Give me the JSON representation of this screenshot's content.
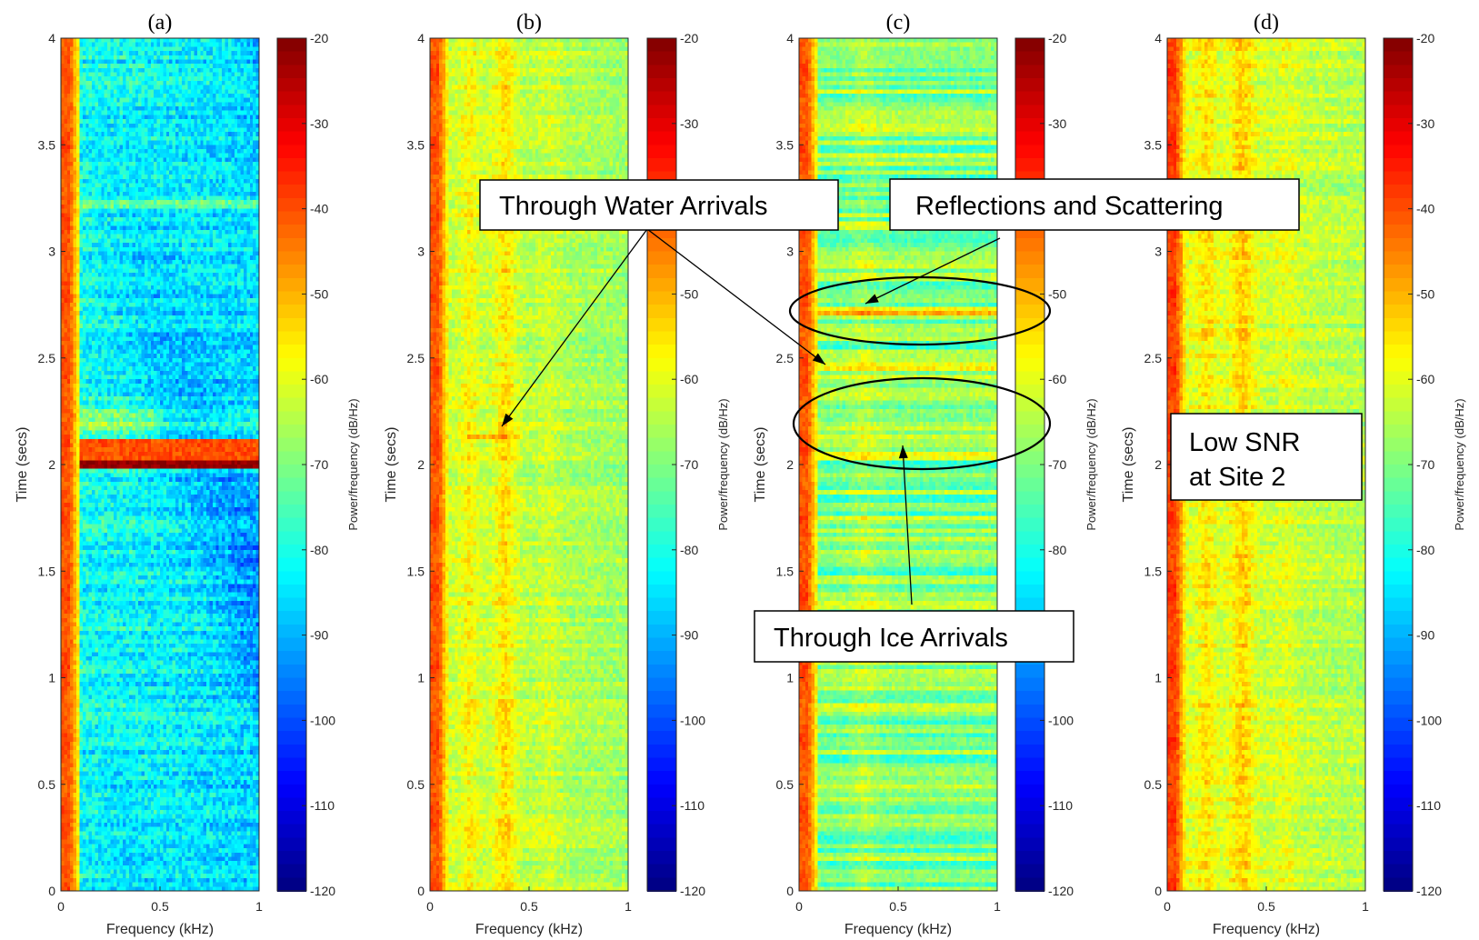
{
  "chart_data": [
    {
      "type": "heatmap",
      "panel_label": "(a)",
      "xlabel": "Frequency (kHz)",
      "ylabel": "Time (secs)",
      "xlim": [
        0,
        1
      ],
      "ylim": [
        0,
        4
      ],
      "xticks": [
        "0",
        "0.5",
        "1"
      ],
      "yticks": [
        "0",
        "0.5",
        "1",
        "1.5",
        "2",
        "2.5",
        "3",
        "3.5",
        "4"
      ],
      "colorbar_label": "Power/frequency (dB/Hz)",
      "clim": [
        -120,
        -20
      ],
      "colorbar_ticks": [
        "-20",
        "-30",
        "-40",
        "-50",
        "-60",
        "-70",
        "-80",
        "-90",
        "-100",
        "-110",
        "-120"
      ],
      "colormap": "jet",
      "features": {
        "background_db": -80,
        "strong_low_freq_db": -38,
        "broadband_pulse_time": 2.0,
        "broadband_pulse_db": -22
      }
    },
    {
      "type": "heatmap",
      "panel_label": "(b)",
      "xlabel": "Frequency (kHz)",
      "ylabel": "Time (secs)",
      "xlim": [
        0,
        1
      ],
      "ylim": [
        0,
        4
      ],
      "xticks": [
        "0",
        "0.5",
        "1"
      ],
      "yticks": [
        "0",
        "0.5",
        "1",
        "1.5",
        "2",
        "2.5",
        "3",
        "3.5",
        "4"
      ],
      "colorbar_label": "Power/frequency (dB/Hz)",
      "clim": [
        -120,
        -20
      ],
      "colorbar_ticks": [
        "-20",
        "-30",
        "-40",
        "-50",
        "-60",
        "-70",
        "-80",
        "-90",
        "-100",
        "-110",
        "-120"
      ],
      "colormap": "jet",
      "features": {
        "background_db": -62,
        "strong_low_freq_db": -38,
        "tonal_band_khz": [
          0.2,
          0.4
        ]
      }
    },
    {
      "type": "heatmap",
      "panel_label": "(c)",
      "xlabel": "Frequency (kHz)",
      "ylabel": "Time (secs)",
      "xlim": [
        0,
        1
      ],
      "ylim": [
        0,
        4
      ],
      "xticks": [
        "0",
        "0.5",
        "1"
      ],
      "yticks": [
        "0",
        "0.5",
        "1",
        "1.5",
        "2",
        "2.5",
        "3",
        "3.5",
        "4"
      ],
      "colorbar_label": "Power/frequency (dB/Hz)",
      "clim": [
        -120,
        -20
      ],
      "colorbar_ticks": [
        "-20",
        "-30",
        "-40",
        "-50",
        "-60",
        "-70",
        "-80",
        "-90",
        "-100",
        "-110",
        "-120"
      ],
      "colormap": "jet",
      "features": {
        "background_db": -70,
        "strong_low_freq_db": -38,
        "arrival_times": [
          2.05,
          2.18,
          2.72
        ]
      }
    },
    {
      "type": "heatmap",
      "panel_label": "(d)",
      "xlabel": "Frequency (kHz)",
      "ylabel": "Time (secs)",
      "xlim": [
        0,
        1
      ],
      "ylim": [
        0,
        4
      ],
      "xticks": [
        "0",
        "0.5",
        "1"
      ],
      "yticks": [
        "0",
        "0.5",
        "1",
        "1.5",
        "2",
        "2.5",
        "3",
        "3.5",
        "4"
      ],
      "colorbar_label": "Power/frequency (dB/Hz)",
      "clim": [
        -120,
        -20
      ],
      "colorbar_ticks": [
        "-20",
        "-30",
        "-40",
        "-50",
        "-60",
        "-70",
        "-80",
        "-90",
        "-100",
        "-110",
        "-120"
      ],
      "colormap": "jet",
      "features": {
        "background_db": -60,
        "strong_low_freq_db": -36,
        "tonal_band_khz": [
          0.2,
          0.4
        ]
      }
    }
  ],
  "annotations": [
    {
      "id": "through-water",
      "text": "Through Water Arrivals"
    },
    {
      "id": "reflections",
      "text": "Reflections and Scattering"
    },
    {
      "id": "through-ice",
      "text": "Through Ice Arrivals"
    },
    {
      "id": "low-snr",
      "lines": [
        "Low SNR",
        "at Site 2"
      ]
    }
  ]
}
